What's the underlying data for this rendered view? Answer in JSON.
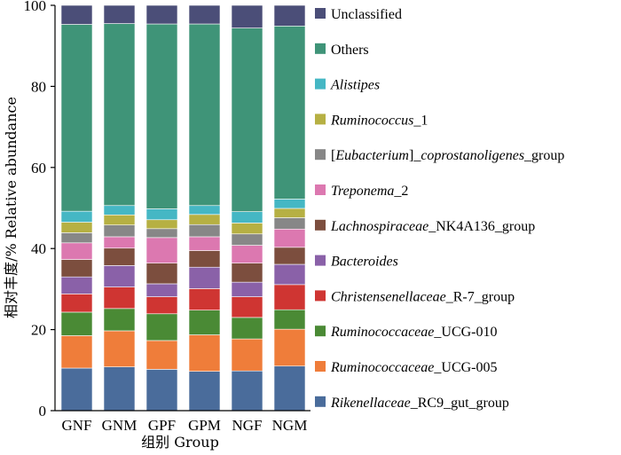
{
  "chart_data": {
    "type": "bar",
    "stacked": true,
    "ylabel": "相对丰度/%  Relative abundance",
    "xlabel": "组别 Group",
    "ylim": [
      0,
      100
    ],
    "yticks": [
      0,
      20,
      40,
      60,
      80,
      100
    ],
    "categories": [
      "GNF",
      "GNM",
      "GPF",
      "GPM",
      "NGF",
      "NGM"
    ],
    "series": [
      {
        "name": "Rikenellaceae_RC9_gut_group",
        "segments": [
          {
            "t": "Rikenellaceae",
            "i": true
          },
          {
            "t": "_RC9_gut_group",
            "i": false
          }
        ],
        "color": "#4a6c9b",
        "values": [
          10.5,
          10.8,
          10.2,
          9.7,
          9.8,
          11.0
        ]
      },
      {
        "name": "Ruminococcaceae_UCG-005",
        "segments": [
          {
            "t": "Ruminococcaceae",
            "i": true
          },
          {
            "t": "_UCG-005",
            "i": false
          }
        ],
        "color": "#ef7d3a",
        "values": [
          8.0,
          8.9,
          7.1,
          9.0,
          7.9,
          9.1
        ]
      },
      {
        "name": "Ruminococcaceae_UCG-010",
        "segments": [
          {
            "t": "Ruminococcaceae",
            "i": true
          },
          {
            "t": "_UCG-010",
            "i": false
          }
        ],
        "color": "#4a8a35",
        "values": [
          5.8,
          5.5,
          6.6,
          6.1,
          5.3,
          4.8
        ]
      },
      {
        "name": "Christensenellaceae_R-7_group",
        "segments": [
          {
            "t": "Christensenellaceae",
            "i": true
          },
          {
            "t": "_R-7_group",
            "i": false
          }
        ],
        "color": "#cf3532",
        "values": [
          4.5,
          5.3,
          4.2,
          5.3,
          5.1,
          6.2
        ]
      },
      {
        "name": "Bacteroides",
        "segments": [
          {
            "t": "Bacteroides",
            "i": true
          }
        ],
        "color": "#8a61a8",
        "values": [
          4.2,
          5.3,
          3.2,
          5.3,
          3.6,
          5.0
        ]
      },
      {
        "name": "Lachnospiraceae_NK4A136_group",
        "segments": [
          {
            "t": "Lachnospiraceae",
            "i": true
          },
          {
            "t": "_NK4A136_group",
            "i": false
          }
        ],
        "color": "#7c4e3e",
        "values": [
          4.3,
          4.3,
          5.1,
          4.1,
          4.7,
          4.2
        ]
      },
      {
        "name": "Treponema_2",
        "segments": [
          {
            "t": "Treponema",
            "i": true
          },
          {
            "t": "_2",
            "i": false
          }
        ],
        "color": "#dc78b0",
        "values": [
          4.1,
          2.8,
          6.3,
          3.4,
          4.4,
          4.5
        ]
      },
      {
        "name": "[Eubacterium]_coprostanoligenes_group",
        "segments": [
          {
            "t": "[",
            "i": false
          },
          {
            "t": "Eubacterium",
            "i": true
          },
          {
            "t": "]_",
            "i": false
          },
          {
            "t": "coprostanoligenes",
            "i": true
          },
          {
            "t": "_group",
            "i": false
          }
        ],
        "color": "#878787",
        "values": [
          2.5,
          2.9,
          2.2,
          3.0,
          2.8,
          2.8
        ]
      },
      {
        "name": "Ruminococcus_1",
        "segments": [
          {
            "t": "Ruminococcus",
            "i": true
          },
          {
            "t": "_1",
            "i": false
          }
        ],
        "color": "#b6b043",
        "values": [
          2.6,
          2.5,
          2.2,
          2.5,
          2.7,
          2.3
        ]
      },
      {
        "name": "Alistipes",
        "segments": [
          {
            "t": "Alistipes",
            "i": true
          }
        ],
        "color": "#45b7c4",
        "values": [
          2.7,
          2.3,
          2.7,
          2.2,
          2.8,
          2.3
        ]
      },
      {
        "name": "Others",
        "segments": [
          {
            "t": "Others",
            "i": false
          }
        ],
        "color": "#3f9478",
        "values": [
          46.1,
          44.9,
          45.6,
          44.8,
          45.3,
          42.7
        ]
      },
      {
        "name": "Unclassified",
        "segments": [
          {
            "t": "Unclassified",
            "i": false
          }
        ],
        "color": "#4b4e78",
        "values": [
          4.7,
          4.5,
          4.6,
          4.6,
          5.6,
          5.1
        ]
      }
    ]
  }
}
